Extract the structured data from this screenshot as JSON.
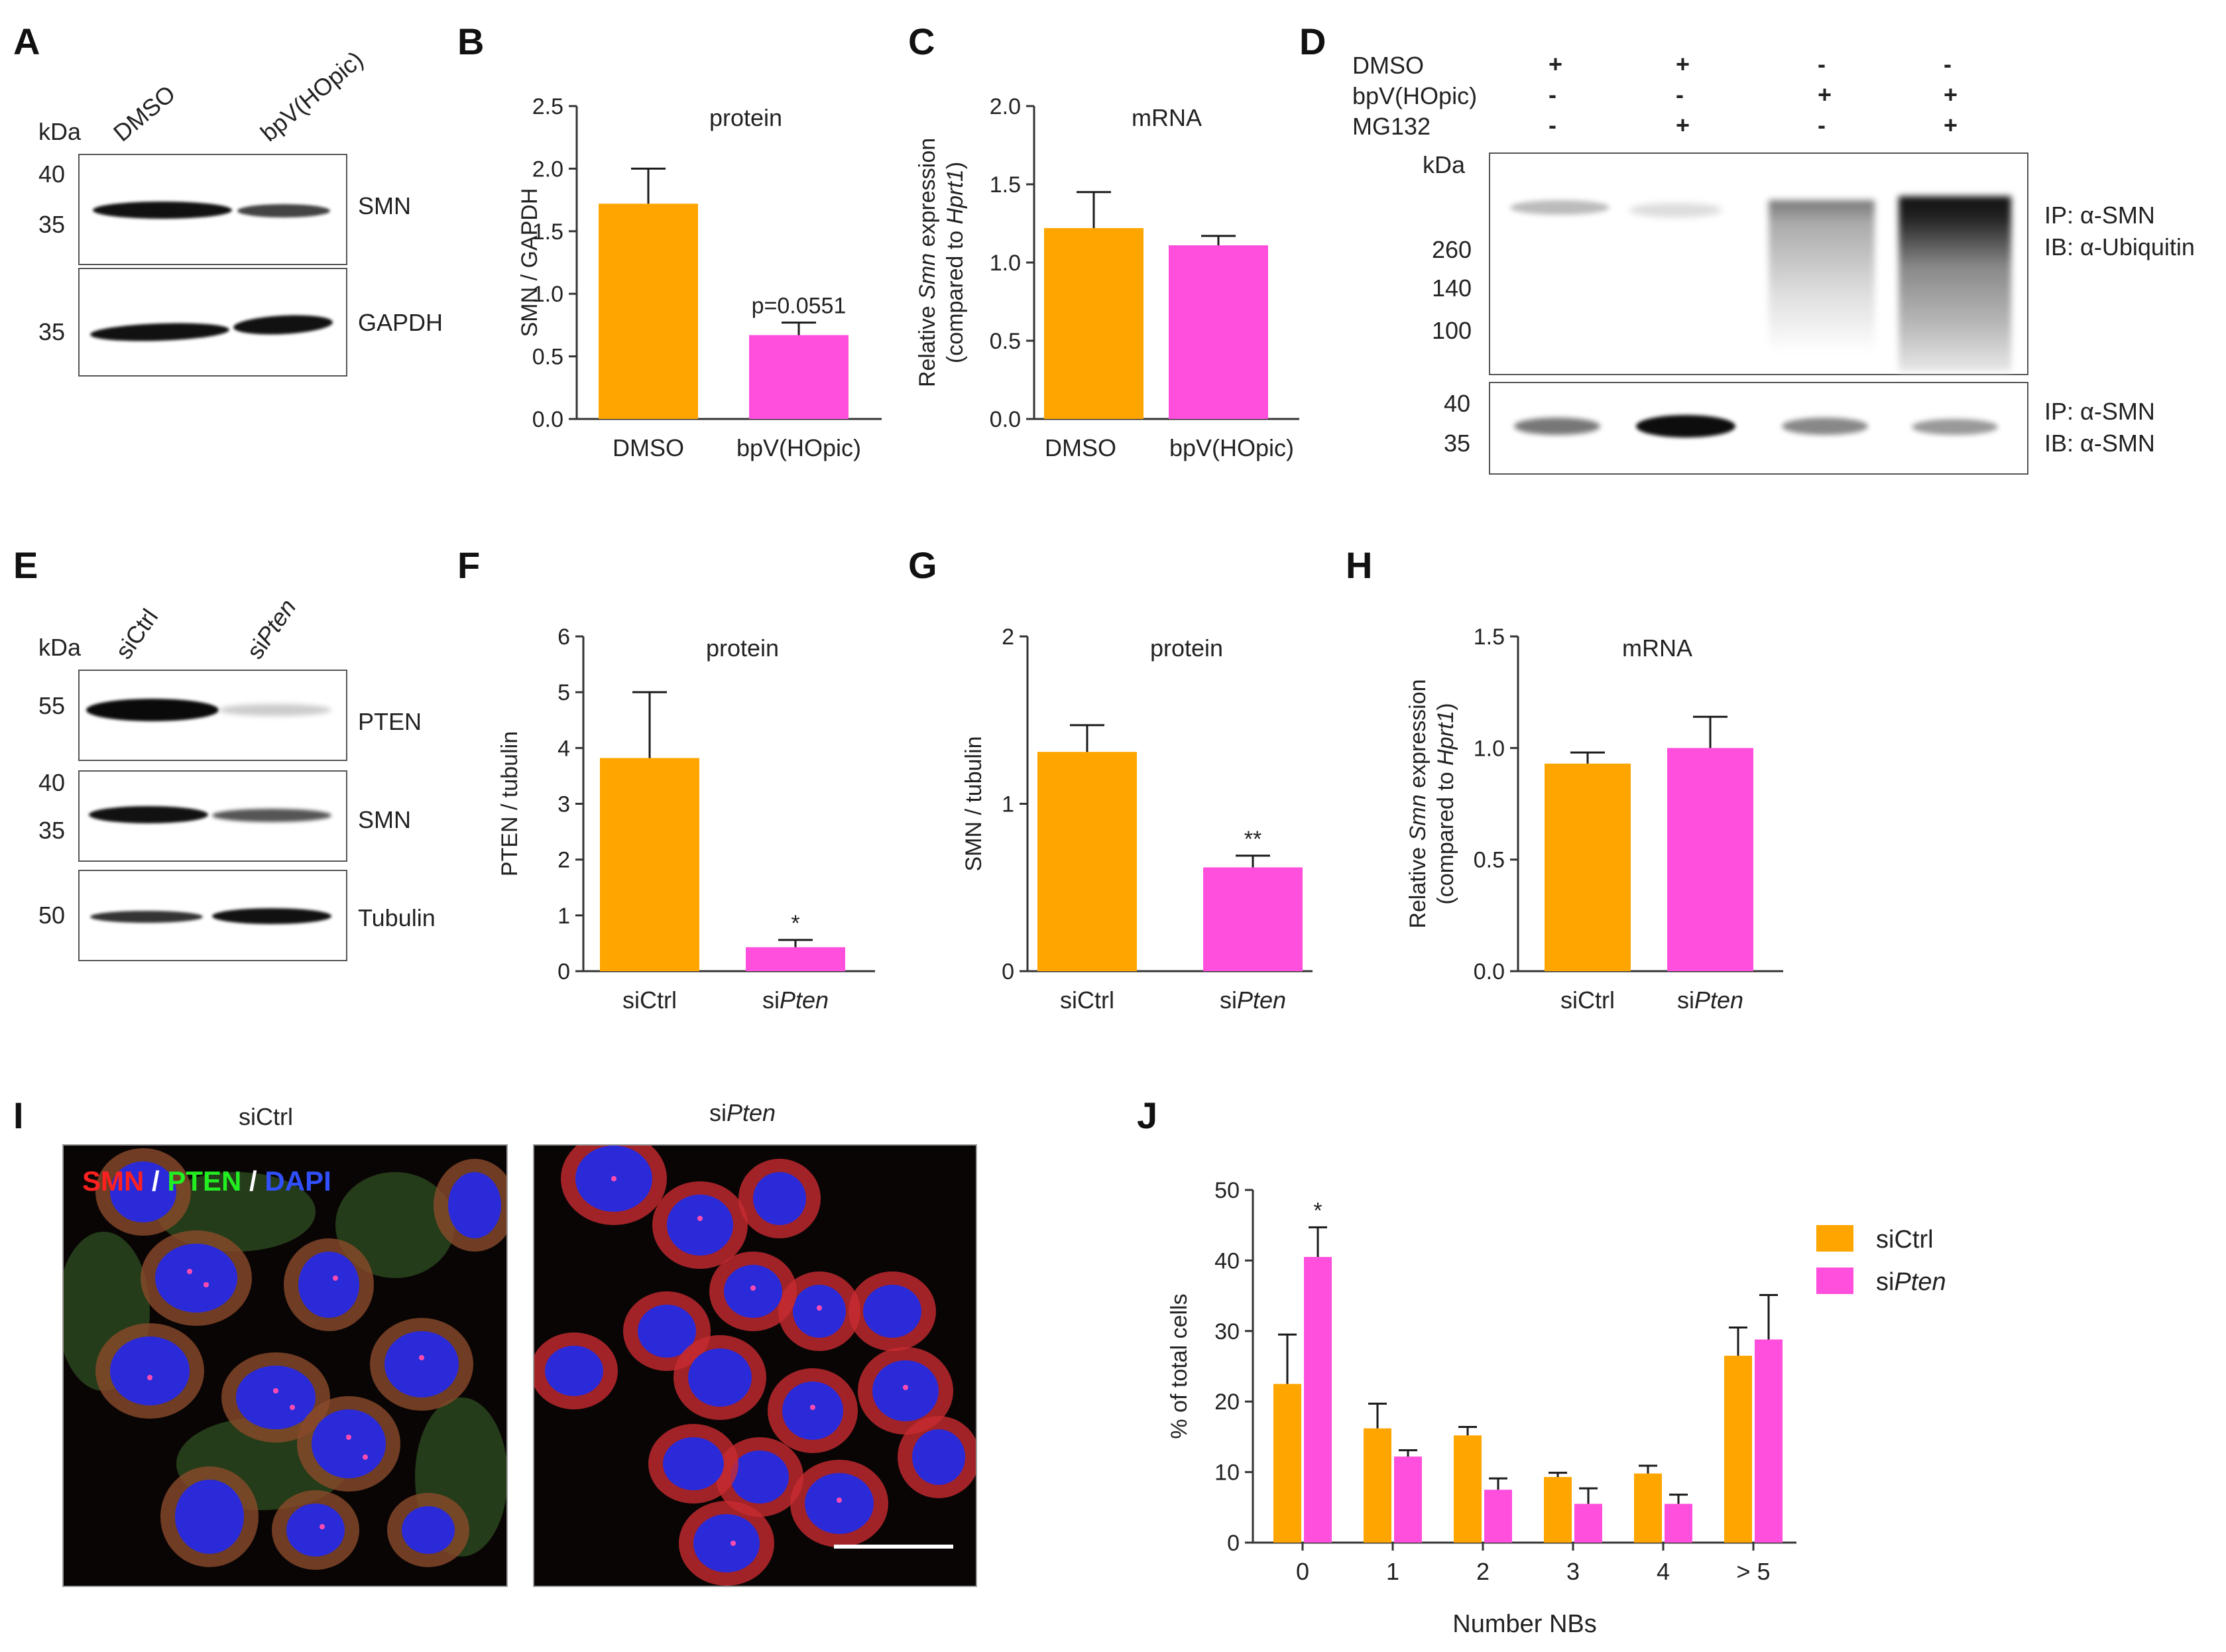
{
  "panels": {
    "A": "A",
    "B": "B",
    "C": "C",
    "D": "D",
    "E": "E",
    "F": "F",
    "G": "G",
    "H": "H",
    "I": "I",
    "J": "J"
  },
  "panel_a": {
    "kda": "kDa",
    "lanes": [
      "DMSO",
      "bpV(HOpic)"
    ],
    "markers": [
      "40",
      "35",
      "35"
    ],
    "blot_labels": [
      "SMN",
      "GAPDH"
    ]
  },
  "panel_d": {
    "rows": [
      {
        "label": "DMSO",
        "marks": [
          "+",
          "+",
          "-",
          "-"
        ]
      },
      {
        "label": "bpV(HOpic)",
        "marks": [
          "-",
          "-",
          "+",
          "+"
        ]
      },
      {
        "label": "MG132",
        "marks": [
          "-",
          "+",
          "-",
          "+"
        ]
      }
    ],
    "kda": "kDa",
    "markers_top": [
      "260",
      "140",
      "100"
    ],
    "markers_bottom": [
      "40",
      "35"
    ],
    "ip_top": "IP: α-SMN",
    "ib_top": "IB: α-Ubiquitin",
    "ip_bottom": "IP: α-SMN",
    "ib_bottom": "IB: α-SMN"
  },
  "panel_e": {
    "kda": "kDa",
    "lanes": [
      "siCtrl",
      "si",
      "Pten"
    ],
    "markers": [
      "55",
      "40",
      "35",
      "50"
    ],
    "blot_labels": [
      "PTEN",
      "SMN",
      "Tubulin"
    ]
  },
  "panel_i": {
    "title_left": "siCtrl",
    "title_right_prefix": "si",
    "title_right_italic": "Pten",
    "overlay": {
      "smn": "SMN",
      "sep1": " / ",
      "pten": "PTEN",
      "sep2": " / ",
      "dapi": "DAPI"
    }
  },
  "colors": {
    "orange": "#FFA500",
    "magenta": "#FF4FDC",
    "error": "#1a1a1a"
  },
  "chart_data": [
    {
      "id": "B",
      "type": "bar",
      "title": "protein",
      "ylabel": "SMN / GAPDH",
      "categories": [
        "DMSO",
        "bpV(HOpic)"
      ],
      "values": [
        1.72,
        0.67
      ],
      "errors": [
        0.28,
        0.1
      ],
      "ylim": [
        0,
        2.5
      ],
      "yticks": [
        "0.0",
        "0.5",
        "1.0",
        "1.5",
        "2.0",
        "2.5"
      ],
      "annotations": [
        "",
        "p=0.0551"
      ]
    },
    {
      "id": "C",
      "type": "bar",
      "title": "mRNA",
      "ylabel": [
        "Relative ",
        "Smn",
        " expression"
      ],
      "ylabel2": [
        "(compared to ",
        "Hprt1",
        ")"
      ],
      "categories": [
        "DMSO",
        "bpV(HOpic)"
      ],
      "values": [
        1.22,
        1.11
      ],
      "errors": [
        0.23,
        0.06
      ],
      "ylim": [
        0,
        2.0
      ],
      "yticks": [
        "0.0",
        "0.5",
        "1.0",
        "1.5",
        "2.0"
      ]
    },
    {
      "id": "F",
      "type": "bar",
      "title": "protein",
      "ylabel": "PTEN / tubulin",
      "categories": [
        "siCtrl",
        "siPten"
      ],
      "values": [
        3.82,
        0.43
      ],
      "errors": [
        1.18,
        0.13
      ],
      "ylim": [
        0,
        6
      ],
      "yticks": [
        "0",
        "1",
        "2",
        "3",
        "4",
        "5",
        "6"
      ],
      "annotations": [
        "",
        "*"
      ]
    },
    {
      "id": "G",
      "type": "bar",
      "title": "protein",
      "ylabel": "SMN / tubulin",
      "categories": [
        "siCtrl",
        "siPten"
      ],
      "values": [
        1.31,
        0.62
      ],
      "errors": [
        0.16,
        0.07
      ],
      "ylim": [
        0,
        2
      ],
      "yticks": [
        "0",
        "1",
        "2"
      ],
      "annotations": [
        "",
        "**"
      ]
    },
    {
      "id": "H",
      "type": "bar",
      "title": "mRNA",
      "ylabel": [
        "Relative ",
        "Smn",
        " expression"
      ],
      "ylabel2": [
        "(compared to ",
        "Hprt1",
        ")"
      ],
      "categories": [
        "siCtrl",
        "siPten"
      ],
      "values": [
        0.93,
        1.0
      ],
      "errors": [
        0.05,
        0.14
      ],
      "ylim": [
        0,
        1.5
      ],
      "yticks": [
        "0.0",
        "0.5",
        "1.0",
        "1.5"
      ]
    },
    {
      "id": "J",
      "type": "bar",
      "xlabel": "Number NBs",
      "ylabel": "% of total cells",
      "categories": [
        "0",
        "1",
        "2",
        "3",
        "4",
        "> 5"
      ],
      "series": [
        {
          "name": "siCtrl",
          "values": [
            22.5,
            16.2,
            15.2,
            9.3,
            9.8,
            26.5
          ],
          "errors": [
            7.0,
            3.5,
            1.2,
            0.6,
            1.1,
            4.0
          ]
        },
        {
          "name": "siPten",
          "values": [
            40.5,
            12.2,
            7.5,
            5.5,
            5.5,
            28.8
          ],
          "errors": [
            4.2,
            0.9,
            1.6,
            2.2,
            1.3,
            6.3
          ]
        }
      ],
      "ylim": [
        0,
        50
      ],
      "yticks": [
        "0",
        "10",
        "20",
        "30",
        "40",
        "50"
      ],
      "annotations": [
        "*",
        "",
        "",
        "",
        "",
        ""
      ],
      "legend": [
        "siCtrl",
        "si",
        "Pten"
      ]
    }
  ]
}
